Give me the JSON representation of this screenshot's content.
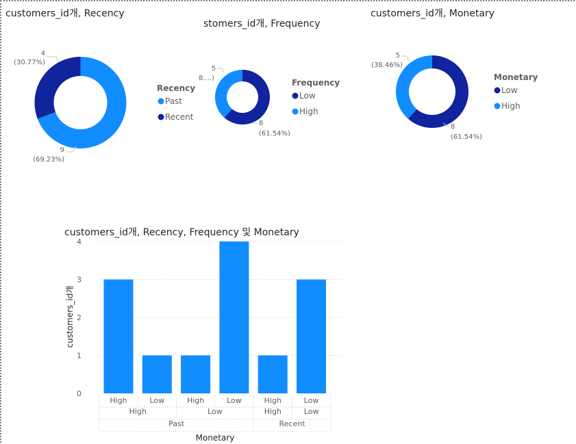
{
  "colors": {
    "light": "#118dff",
    "dark": "#12239e",
    "grid": "#c8c6c4",
    "labelgray": "#605e5c"
  },
  "chart_data": [
    {
      "type": "pie",
      "title": "customers_id개, Recency",
      "legend_title": "Recency",
      "legend_position": "right",
      "slices": [
        {
          "label": "Past",
          "value": 9,
          "percent": "(69.23%)",
          "color": "#118dff"
        },
        {
          "label": "Recent",
          "value": 4,
          "percent": "(30.77%)",
          "color": "#12239e"
        }
      ]
    },
    {
      "type": "pie",
      "title": "stomers_id개, Frequency",
      "legend_title": "Frequency",
      "legend_position": "right",
      "slices": [
        {
          "label": "Low",
          "value": 8,
          "percent": "(61.54%)",
          "color": "#12239e"
        },
        {
          "label": "High",
          "value": 5,
          "percent": "(38....)",
          "color": "#118dff"
        }
      ]
    },
    {
      "type": "pie",
      "title": "customers_id개, Monetary",
      "legend_title": "Monetary",
      "legend_position": "right",
      "slices": [
        {
          "label": "Low",
          "value": 8,
          "percent": "(61.54%)",
          "color": "#12239e"
        },
        {
          "label": "High",
          "value": 5,
          "percent": "(38.46%)",
          "color": "#118dff"
        }
      ]
    },
    {
      "type": "bar",
      "title": "customers_id개, Recency, Frequency 및 Monetary",
      "xlabel": "Monetary",
      "ylabel": "customers_id개",
      "ylim": [
        0,
        4
      ],
      "yticks": [
        "0",
        "1",
        "2",
        "3",
        "4"
      ],
      "grid": true,
      "bars": [
        {
          "monetary": "High",
          "frequency": "High",
          "recency": "Past",
          "value": 3
        },
        {
          "monetary": "Low",
          "frequency": "High",
          "recency": "Past",
          "value": 1
        },
        {
          "monetary": "High",
          "frequency": "Low",
          "recency": "Past",
          "value": 1
        },
        {
          "monetary": "Low",
          "frequency": "Low",
          "recency": "Past",
          "value": 4
        },
        {
          "monetary": "High",
          "frequency": "High",
          "recency": "Recent",
          "value": 1
        },
        {
          "monetary": "Low",
          "frequency": "Low",
          "recency": "Recent",
          "value": 3
        }
      ],
      "level2_groups": [
        "High",
        "Low",
        "High",
        "Low"
      ],
      "level3_groups": [
        "Past",
        "Recent"
      ]
    }
  ]
}
